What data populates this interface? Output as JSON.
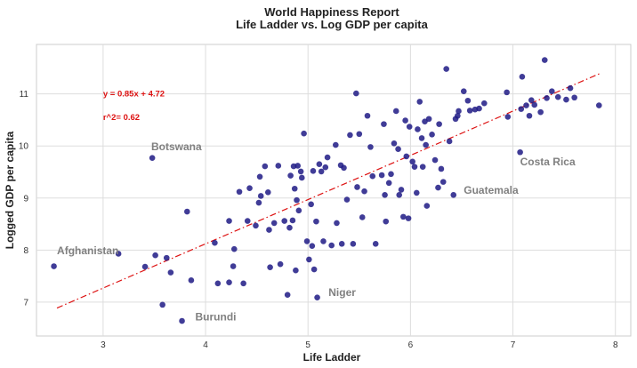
{
  "chart_data": {
    "type": "scatter",
    "title": "World Happiness Report",
    "subtitle": "Life Ladder vs. Log GDP per capita",
    "xlabel": "Life Ladder",
    "ylabel": "Logged GDP per capita",
    "xlim": [
      2.35,
      8.15
    ],
    "ylim": [
      6.35,
      11.95
    ],
    "xticks": [
      3,
      4,
      5,
      6,
      7,
      8
    ],
    "yticks": [
      7,
      8,
      9,
      10,
      11
    ],
    "grid": true,
    "colors": {
      "points": "#1f1a85",
      "trend": "#dd1111",
      "annotation": "#808080",
      "grid": "#dddddd"
    },
    "trendline": {
      "slope": 0.85,
      "intercept": 4.72,
      "x_range": [
        2.55,
        7.85
      ],
      "style": "dashdot"
    },
    "equation_text": "y = 0.85x + 4.72",
    "equation_pos": [
      3.0,
      11.0
    ],
    "r2_text": "r^2= 0.62",
    "r2_pos": [
      3.0,
      10.55
    ],
    "annotations": [
      {
        "text": "Afghanistan",
        "x": 2.55,
        "y": 7.92
      },
      {
        "text": "Botswana",
        "x": 3.47,
        "y": 9.92
      },
      {
        "text": "Burundi",
        "x": 3.9,
        "y": 6.65
      },
      {
        "text": "Niger",
        "x": 5.2,
        "y": 7.12
      },
      {
        "text": "Guatemala",
        "x": 6.52,
        "y": 9.08
      },
      {
        "text": "Costa Rica",
        "x": 7.07,
        "y": 9.63
      }
    ],
    "points": [
      [
        2.52,
        7.69
      ],
      [
        3.15,
        7.93
      ],
      [
        3.41,
        7.68
      ],
      [
        3.48,
        9.77
      ],
      [
        3.51,
        7.9
      ],
      [
        3.58,
        6.95
      ],
      [
        3.62,
        7.85
      ],
      [
        3.66,
        7.57
      ],
      [
        3.77,
        6.64
      ],
      [
        3.82,
        8.74
      ],
      [
        3.86,
        7.42
      ],
      [
        4.09,
        8.14
      ],
      [
        4.12,
        7.36
      ],
      [
        4.23,
        7.38
      ],
      [
        4.23,
        8.56
      ],
      [
        4.27,
        7.69
      ],
      [
        4.28,
        8.02
      ],
      [
        4.33,
        9.12
      ],
      [
        4.37,
        7.36
      ],
      [
        4.41,
        8.56
      ],
      [
        4.43,
        9.19
      ],
      [
        4.49,
        8.47
      ],
      [
        4.52,
        8.91
      ],
      [
        4.53,
        9.41
      ],
      [
        4.54,
        9.04
      ],
      [
        4.58,
        9.61
      ],
      [
        4.61,
        9.11
      ],
      [
        4.62,
        8.39
      ],
      [
        4.63,
        7.67
      ],
      [
        4.67,
        8.52
      ],
      [
        4.71,
        9.62
      ],
      [
        4.73,
        7.73
      ],
      [
        4.77,
        8.56
      ],
      [
        4.8,
        7.14
      ],
      [
        4.82,
        8.43
      ],
      [
        4.83,
        9.43
      ],
      [
        4.85,
        8.57
      ],
      [
        4.86,
        9.61
      ],
      [
        4.87,
        9.18
      ],
      [
        4.88,
        7.61
      ],
      [
        4.89,
        8.96
      ],
      [
        4.9,
        9.62
      ],
      [
        4.91,
        8.76
      ],
      [
        4.93,
        9.51
      ],
      [
        4.94,
        9.39
      ],
      [
        4.96,
        10.24
      ],
      [
        4.99,
        8.17
      ],
      [
        5.01,
        7.82
      ],
      [
        5.03,
        8.88
      ],
      [
        5.04,
        8.08
      ],
      [
        5.05,
        9.52
      ],
      [
        5.06,
        7.63
      ],
      [
        5.08,
        8.55
      ],
      [
        5.09,
        7.09
      ],
      [
        5.11,
        9.65
      ],
      [
        5.13,
        9.51
      ],
      [
        5.15,
        8.17
      ],
      [
        5.17,
        9.59
      ],
      [
        5.19,
        9.78
      ],
      [
        5.23,
        8.09
      ],
      [
        5.27,
        10.02
      ],
      [
        5.28,
        8.52
      ],
      [
        5.32,
        9.63
      ],
      [
        5.33,
        8.12
      ],
      [
        5.35,
        9.58
      ],
      [
        5.38,
        8.97
      ],
      [
        5.41,
        10.21
      ],
      [
        5.44,
        8.12
      ],
      [
        5.47,
        11.01
      ],
      [
        5.48,
        9.21
      ],
      [
        5.5,
        10.23
      ],
      [
        5.53,
        8.63
      ],
      [
        5.55,
        9.13
      ],
      [
        5.58,
        10.58
      ],
      [
        5.61,
        9.98
      ],
      [
        5.63,
        9.42
      ],
      [
        5.66,
        8.12
      ],
      [
        5.72,
        9.44
      ],
      [
        5.74,
        10.42
      ],
      [
        5.75,
        9.06
      ],
      [
        5.76,
        8.55
      ],
      [
        5.79,
        9.29
      ],
      [
        5.81,
        9.46
      ],
      [
        5.84,
        10.05
      ],
      [
        5.86,
        10.67
      ],
      [
        5.88,
        9.94
      ],
      [
        5.89,
        9.06
      ],
      [
        5.91,
        9.16
      ],
      [
        5.93,
        8.64
      ],
      [
        5.95,
        10.49
      ],
      [
        5.96,
        9.8
      ],
      [
        5.98,
        8.61
      ],
      [
        5.99,
        10.37
      ],
      [
        6.02,
        9.7
      ],
      [
        6.04,
        9.6
      ],
      [
        6.06,
        9.1
      ],
      [
        6.07,
        10.32
      ],
      [
        6.09,
        10.85
      ],
      [
        6.11,
        10.15
      ],
      [
        6.12,
        9.6
      ],
      [
        6.14,
        10.47
      ],
      [
        6.15,
        10.02
      ],
      [
        6.16,
        8.85
      ],
      [
        6.18,
        10.52
      ],
      [
        6.21,
        10.22
      ],
      [
        6.24,
        9.73
      ],
      [
        6.27,
        9.2
      ],
      [
        6.28,
        10.42
      ],
      [
        6.3,
        9.56
      ],
      [
        6.32,
        9.31
      ],
      [
        6.35,
        11.48
      ],
      [
        6.38,
        10.09
      ],
      [
        6.42,
        9.06
      ],
      [
        6.44,
        10.52
      ],
      [
        6.46,
        10.58
      ],
      [
        6.47,
        10.67
      ],
      [
        6.52,
        11.05
      ],
      [
        6.56,
        10.87
      ],
      [
        6.58,
        10.68
      ],
      [
        6.63,
        10.7
      ],
      [
        6.67,
        10.72
      ],
      [
        6.72,
        10.82
      ],
      [
        6.94,
        11.03
      ],
      [
        6.95,
        10.56
      ],
      [
        7.07,
        9.88
      ],
      [
        7.08,
        10.71
      ],
      [
        7.09,
        11.33
      ],
      [
        7.13,
        10.78
      ],
      [
        7.16,
        10.58
      ],
      [
        7.18,
        10.88
      ],
      [
        7.21,
        10.79
      ],
      [
        7.27,
        10.65
      ],
      [
        7.31,
        11.65
      ],
      [
        7.33,
        10.92
      ],
      [
        7.38,
        11.05
      ],
      [
        7.44,
        10.94
      ],
      [
        7.52,
        10.89
      ],
      [
        7.56,
        11.11
      ],
      [
        7.6,
        10.93
      ],
      [
        7.84,
        10.78
      ]
    ]
  }
}
